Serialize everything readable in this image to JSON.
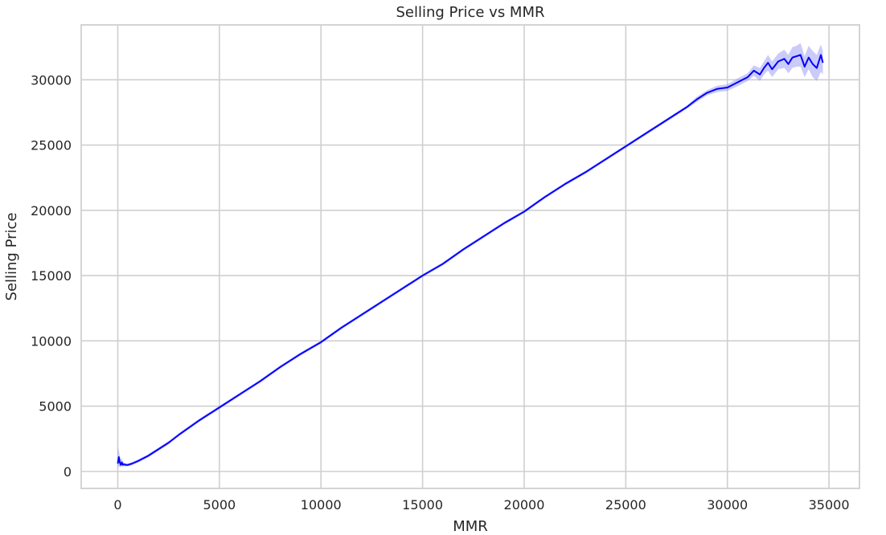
{
  "chart_data": {
    "type": "line",
    "title": "Selling Price vs MMR",
    "xlabel": "MMR",
    "ylabel": "Selling Price",
    "xlim": [
      -1800,
      36500
    ],
    "ylim": [
      -1300,
      34200
    ],
    "xticks": [
      0,
      5000,
      10000,
      15000,
      20000,
      25000,
      30000,
      35000
    ],
    "yticks": [
      0,
      5000,
      10000,
      15000,
      20000,
      25000,
      30000
    ],
    "xtick_labels": [
      "0",
      "5000",
      "10000",
      "15000",
      "20000",
      "25000",
      "30000",
      "35000"
    ],
    "ytick_labels": [
      "0",
      "5000",
      "10000",
      "15000",
      "20000",
      "25000",
      "30000"
    ],
    "grid": true,
    "legend": "none",
    "colors": {
      "line": "#0000ff",
      "band": "#8c8cf5",
      "grid": "#cfcfcf"
    },
    "series": [
      {
        "x": [
          0,
          50,
          100,
          150,
          200,
          250,
          300,
          400,
          500,
          700,
          1000,
          1500,
          2000,
          2500,
          3000,
          4000,
          5000,
          6000,
          7000,
          8000,
          9000,
          10000,
          11000,
          12000,
          13000,
          14000,
          15000,
          16000,
          17000,
          18000,
          19000,
          20000,
          21000,
          22000,
          23000,
          24000,
          25000,
          26000,
          27000,
          28000,
          28500,
          29000,
          29500,
          30000,
          30500,
          31000,
          31300,
          31600,
          31800,
          32000,
          32200,
          32500,
          32800,
          33000,
          33200,
          33400,
          33600,
          33800,
          34000,
          34200,
          34400,
          34600,
          34700
        ],
        "y": [
          600,
          1100,
          700,
          500,
          700,
          500,
          550,
          500,
          500,
          600,
          800,
          1200,
          1700,
          2200,
          2800,
          3900,
          4900,
          5900,
          6900,
          8000,
          9000,
          9900,
          11000,
          12000,
          13000,
          14000,
          15000,
          15900,
          17000,
          18000,
          19000,
          19900,
          21000,
          22000,
          22900,
          23900,
          24900,
          25900,
          26900,
          27900,
          28500,
          29000,
          29300,
          29400,
          29800,
          30200,
          30700,
          30400,
          30900,
          31300,
          30800,
          31400,
          31600,
          31200,
          31700,
          31800,
          31900,
          31000,
          31700,
          31200,
          30900,
          31900,
          31300
        ],
        "band_low": [
          300,
          400,
          350,
          300,
          450,
          350,
          400,
          380,
          400,
          480,
          680,
          1080,
          1580,
          2080,
          2680,
          3780,
          4780,
          5780,
          6780,
          7880,
          8880,
          9780,
          10880,
          11880,
          12880,
          13880,
          14880,
          15780,
          16880,
          17880,
          18880,
          19780,
          20880,
          21880,
          22780,
          23780,
          24780,
          25780,
          26780,
          27780,
          28300,
          28800,
          29050,
          29150,
          29500,
          29900,
          30300,
          29900,
          30400,
          30700,
          30200,
          30800,
          30900,
          30500,
          30900,
          31000,
          31000,
          30200,
          30800,
          30200,
          29900,
          30600,
          30400
        ],
        "band_high": [
          1900,
          1600,
          1200,
          900,
          1000,
          700,
          700,
          620,
          600,
          720,
          920,
          1320,
          1820,
          2320,
          2920,
          4020,
          5020,
          6020,
          7020,
          8120,
          9120,
          10020,
          11120,
          12120,
          13120,
          14120,
          15120,
          16020,
          17120,
          18120,
          19120,
          20020,
          21120,
          22120,
          23020,
          24020,
          25020,
          26020,
          27020,
          28020,
          28700,
          29200,
          29550,
          29650,
          30100,
          30500,
          31100,
          30900,
          31400,
          31900,
          31400,
          32000,
          32300,
          31900,
          32500,
          32600,
          32800,
          31800,
          32600,
          32200,
          31900,
          32700,
          32200
        ]
      }
    ]
  }
}
